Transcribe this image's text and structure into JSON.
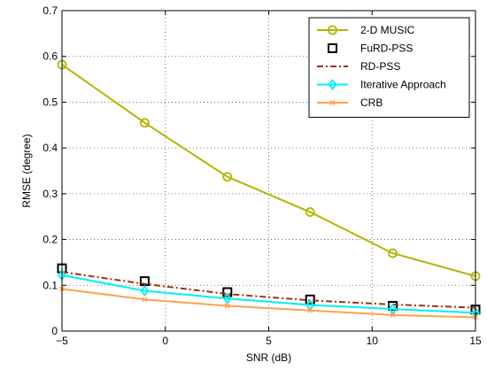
{
  "chart_data": {
    "type": "line",
    "xlabel": "SNR (dB)",
    "ylabel": "RMSE (degree)",
    "xlim": [
      -5,
      15
    ],
    "ylim": [
      0,
      0.7
    ],
    "x_ticks": [
      -5,
      0,
      5,
      10,
      15
    ],
    "y_ticks": [
      0,
      0.1,
      0.2,
      0.3,
      0.4,
      0.5,
      0.6,
      0.7
    ],
    "grid": true,
    "legend_position": "top-right",
    "series": [
      {
        "name": "2-D MUSIC",
        "marker": "circle",
        "line": "solid",
        "color": "#b5b300",
        "x": [
          -5,
          -1,
          3,
          7,
          11,
          15
        ],
        "values": [
          0.582,
          0.455,
          0.337,
          0.26,
          0.17,
          0.12
        ]
      },
      {
        "name": "FuRD-PSS",
        "marker": "square",
        "line": "none",
        "color": "#000000",
        "x": [
          -5,
          -1,
          3,
          7,
          11,
          15
        ],
        "values": [
          0.137,
          0.109,
          0.085,
          0.069,
          0.055,
          0.047
        ]
      },
      {
        "name": "RD-PSS",
        "marker": "none",
        "line": "dashdot",
        "color": "#a0300f",
        "x": [
          -5,
          -1,
          3,
          7,
          11,
          15
        ],
        "values": [
          0.129,
          0.103,
          0.081,
          0.067,
          0.058,
          0.051
        ]
      },
      {
        "name": "Iterative Approach",
        "marker": "diamond",
        "line": "solid",
        "color": "#00f0f0",
        "x": [
          -5,
          -1,
          3,
          7,
          11,
          15
        ],
        "values": [
          0.122,
          0.088,
          0.071,
          0.057,
          0.048,
          0.04
        ]
      },
      {
        "name": "CRB",
        "marker": "x",
        "line": "solid",
        "color": "#ffa050",
        "x": [
          -5,
          -1,
          3,
          7,
          11,
          15
        ],
        "values": [
          0.092,
          0.069,
          0.055,
          0.045,
          0.035,
          0.03
        ]
      }
    ]
  }
}
